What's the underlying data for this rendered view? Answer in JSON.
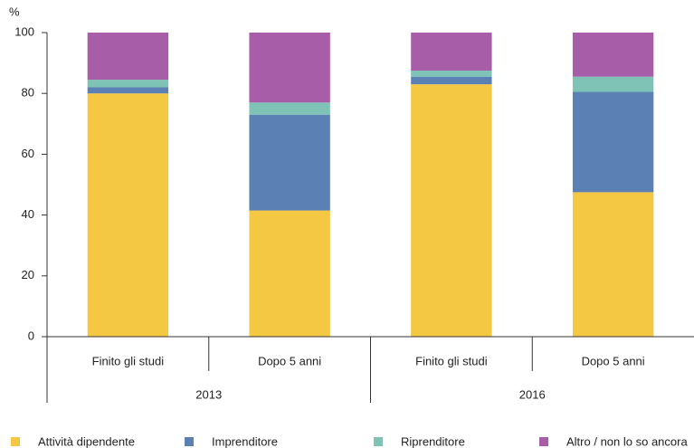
{
  "chart_data": {
    "type": "stacked_bar",
    "y_label": "%",
    "categories": [
      "Finito gli studi",
      "Dopo 5 anni",
      "Finito gli studi",
      "Dopo 5 anni"
    ],
    "groups": [
      "2013",
      "2016"
    ],
    "series": [
      {
        "name": "Attività dipendente",
        "color": "#f4c842",
        "values": [
          80,
          41.5,
          83,
          47.5
        ]
      },
      {
        "name": "Imprenditore",
        "color": "#5b80b4",
        "values": [
          2,
          31.5,
          2.5,
          33
        ]
      },
      {
        "name": "Riprenditore",
        "color": "#7fc3b6",
        "values": [
          2.5,
          4,
          2,
          5
        ]
      },
      {
        "name": "Altro / non lo so ancora",
        "color": "#a75da8",
        "values": [
          15.5,
          23,
          12.5,
          14.5
        ]
      }
    ],
    "ylim": [
      0,
      100
    ],
    "yticks": [
      0,
      20,
      40,
      60,
      80,
      100
    ],
    "grid": false
  }
}
